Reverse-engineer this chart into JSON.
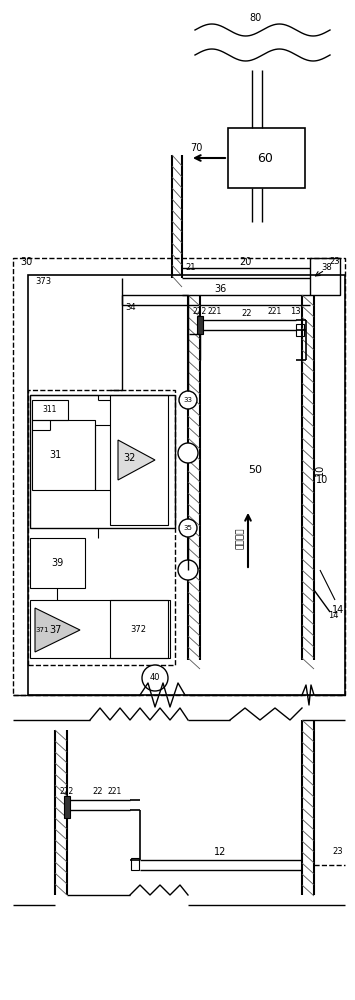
{
  "bg_color": "#ffffff",
  "line_color": "#000000",
  "fig_width": 3.55,
  "fig_height": 10.0,
  "dpi": 100
}
